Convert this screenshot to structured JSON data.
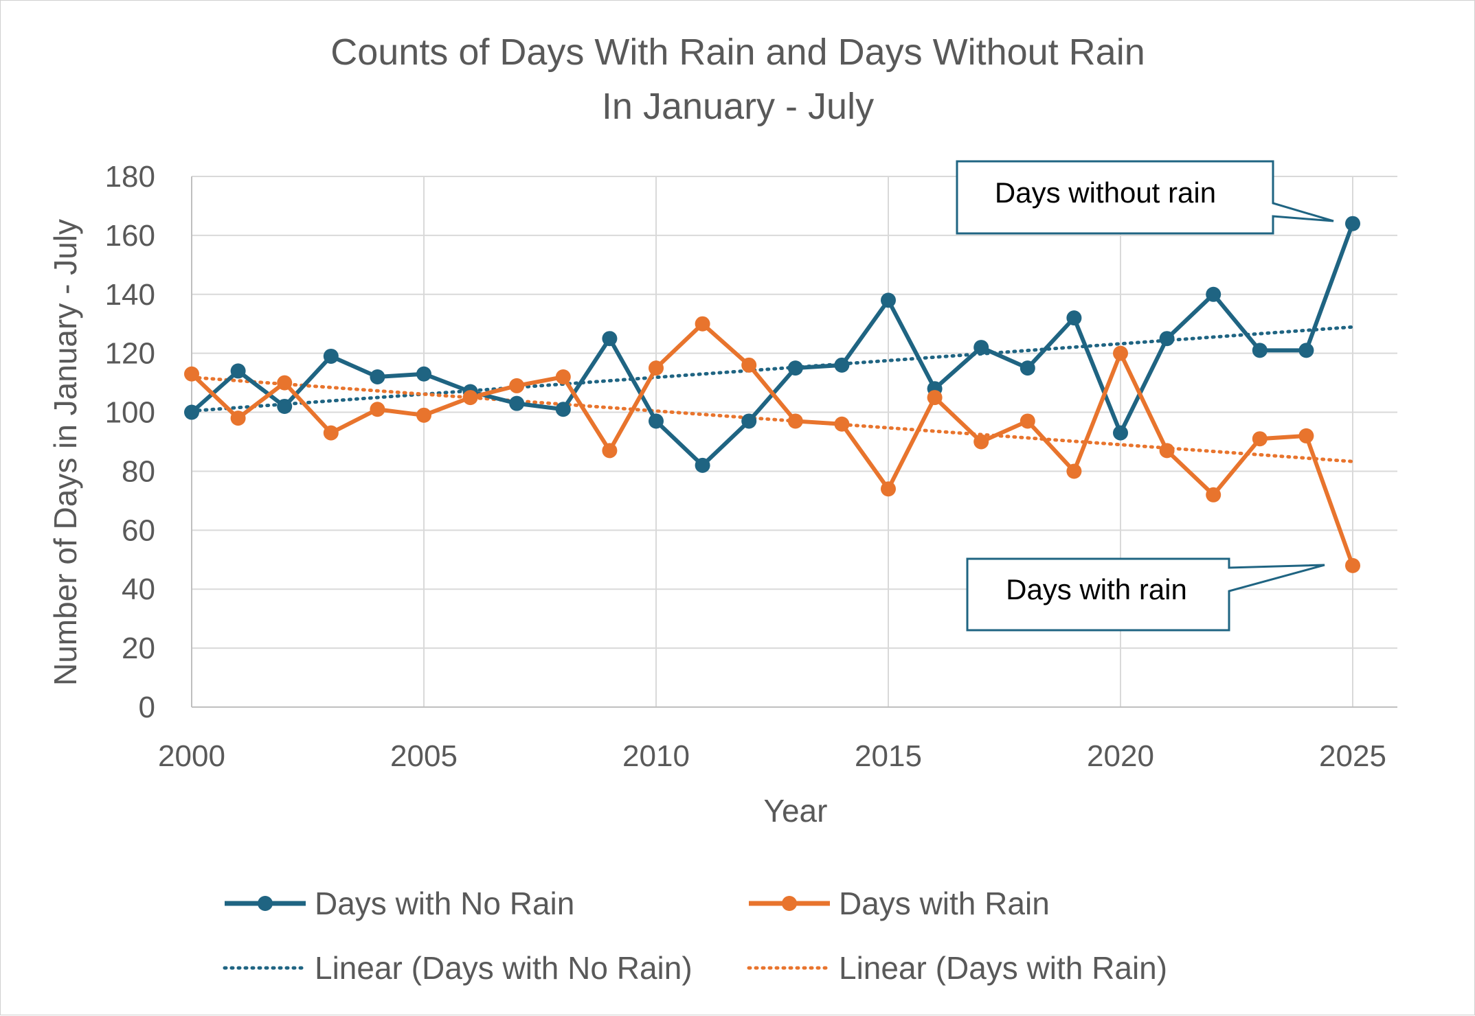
{
  "chart_data": {
    "type": "line",
    "title_lines": [
      "Counts of Days With Rain and Days Without Rain",
      "In January - July"
    ],
    "xlabel": "Year",
    "ylabel": "Number of Days in January - July",
    "xlim": [
      2000,
      2025
    ],
    "ylim": [
      0,
      180
    ],
    "xticks": [
      2000,
      2005,
      2010,
      2015,
      2020,
      2025
    ],
    "yticks": [
      0,
      20,
      40,
      60,
      80,
      100,
      120,
      140,
      160,
      180
    ],
    "grid": true,
    "legend_position": "bottom",
    "x": [
      2000,
      2001,
      2002,
      2003,
      2004,
      2005,
      2006,
      2007,
      2008,
      2009,
      2010,
      2011,
      2012,
      2013,
      2014,
      2015,
      2016,
      2017,
      2018,
      2019,
      2020,
      2021,
      2022,
      2023,
      2024,
      2025
    ],
    "series": [
      {
        "name": "Days with No Rain",
        "color": "#1f6482",
        "values": [
          100,
          114,
          102,
          119,
          112,
          113,
          107,
          103,
          101,
          125,
          97,
          82,
          97,
          115,
          116,
          138,
          108,
          122,
          115,
          132,
          93,
          125,
          140,
          121,
          121,
          164
        ]
      },
      {
        "name": "Days with Rain",
        "color": "#e8742d",
        "values": [
          113,
          98,
          110,
          93,
          101,
          99,
          105,
          109,
          112,
          87,
          115,
          130,
          116,
          97,
          96,
          74,
          105,
          90,
          97,
          80,
          120,
          87,
          72,
          91,
          92,
          48
        ]
      }
    ],
    "trendlines": [
      {
        "name": "Linear (Days with No Rain)",
        "color": "#1f6482",
        "of_series": 0
      },
      {
        "name": "Linear (Days with Rain)",
        "color": "#e8742d",
        "of_series": 1
      }
    ],
    "annotations": [
      {
        "text": "Days without rain",
        "x": 2025,
        "y": 164
      },
      {
        "text": "Days with rain",
        "x": 2025,
        "y": 48
      }
    ]
  }
}
